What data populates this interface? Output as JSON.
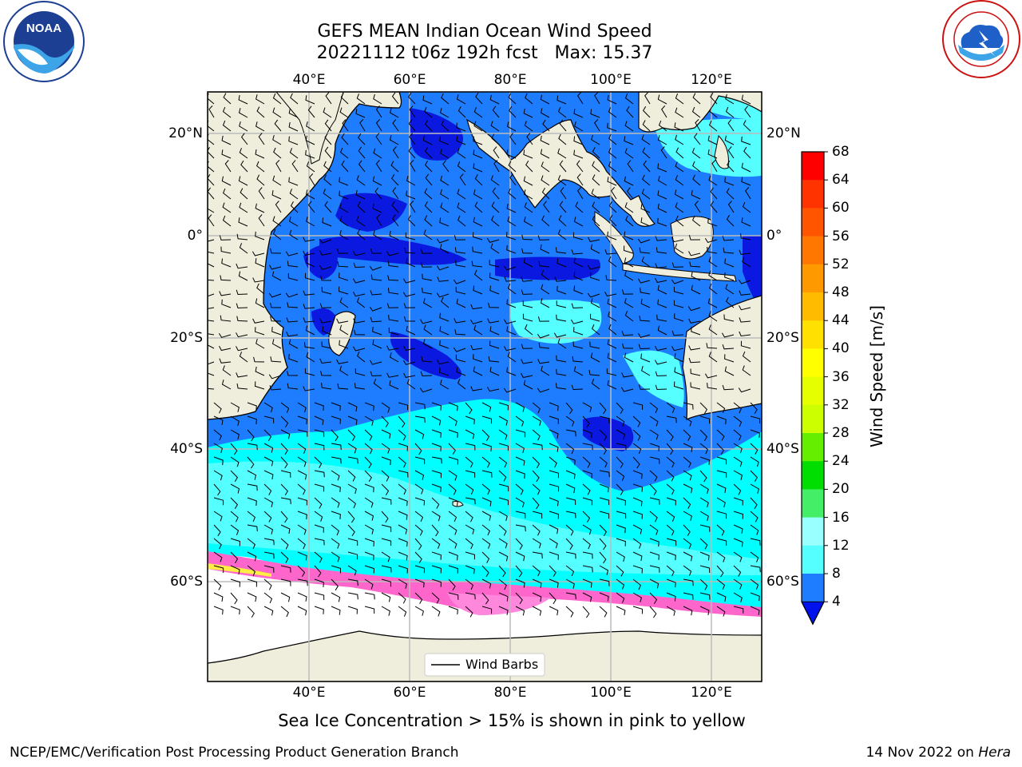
{
  "title": {
    "line1": "GEFS MEAN Indian Ocean Wind Speed",
    "line2": "20221112 t06z 192h fcst   Max: 15.37"
  },
  "axes": {
    "lon_ticks": [
      "40°E",
      "60°E",
      "80°E",
      "100°E",
      "120°E"
    ],
    "lat_ticks_left": [
      "20°N",
      "0°",
      "20°S",
      "40°S",
      "60°S"
    ],
    "lat_ticks_right": [
      "20°N",
      "0°",
      "20°S",
      "40°S",
      "60°S"
    ]
  },
  "legend": {
    "wind_barbs": "Wind Barbs"
  },
  "colorbar": {
    "label": "Wind Speed [m/s]",
    "ticks": [
      "68",
      "64",
      "60",
      "56",
      "52",
      "48",
      "44",
      "40",
      "36",
      "32",
      "28",
      "24",
      "20",
      "16",
      "12",
      "8",
      "4"
    ],
    "colors": [
      "#ff0000",
      "#ff3300",
      "#ff5500",
      "#ff7700",
      "#ff9900",
      "#ffbb00",
      "#ffe000",
      "#ffff00",
      "#e6ff00",
      "#ccff00",
      "#66ee00",
      "#00dd00",
      "#44ee66",
      "#99ffff",
      "#55ffff",
      "#00ffff",
      "#1e7cff"
    ],
    "under_color": "#0011ee"
  },
  "footer": {
    "caption": "Sea Ice Concentration > 15% is shown in pink to yellow",
    "branch": "NCEP/EMC/Verification Post Processing Product Generation Branch",
    "date": "14 Nov 2022 on",
    "machine": "Hera"
  },
  "logos": {
    "noaa": {
      "text": "NOAA",
      "ring_text": "NATIONAL OCEANIC AND ATMOSPHERIC ADMINISTRATION · U.S. DEPARTMENT OF COMMERCE"
    },
    "nws": {
      "ring_text": "NATIONAL WEATHER SERVICE"
    }
  },
  "map_colors": {
    "land": "#efeedd",
    "ocean_light": "#1e7cff",
    "ocean_dark": "#0a18e0",
    "cyan": "#00ffff",
    "light_cyan": "#55ffff",
    "sea_ice": "#ff66cc",
    "grid": "#bbbbbb"
  }
}
